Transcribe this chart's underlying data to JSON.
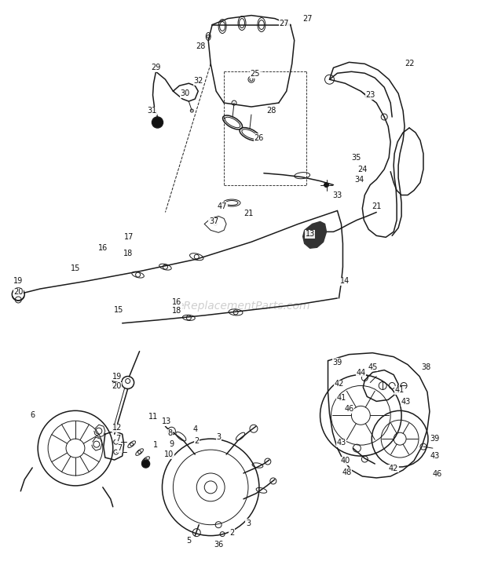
{
  "bg_color": "#ffffff",
  "line_color": "#1a1a1a",
  "text_color": "#111111",
  "watermark": "eReplacementParts.com",
  "watermark_color": "#bbbbbb",
  "fig_width": 6.2,
  "fig_height": 7.48,
  "dpi": 100
}
